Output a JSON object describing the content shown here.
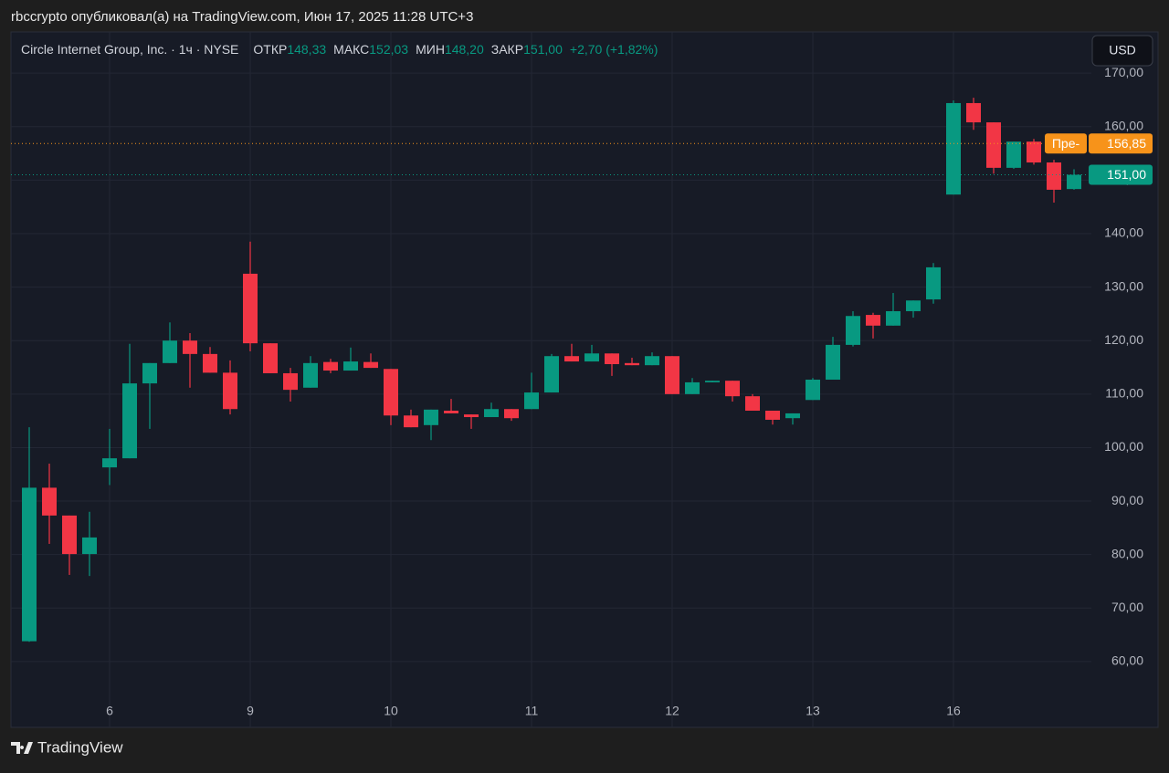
{
  "caption": "rbccrypto опубликовал(а) на TradingView.com, Июн 17, 2025 11:28 UTC+3",
  "footer": {
    "brand": "TradingView"
  },
  "chart_data": {
    "type": "candlestick",
    "legend": {
      "symbol": "Circle Internet Group, Inc. · 1ч · NYSE",
      "fields": [
        {
          "label": "ОТКР",
          "value": "148,33"
        },
        {
          "label": "МАКС",
          "value": "152,03"
        },
        {
          "label": "МИН",
          "value": "148,20"
        },
        {
          "label": "ЗАКР",
          "value": "151,00"
        }
      ],
      "change": "+2,70 (+1,82%)"
    },
    "currency": "USD",
    "categories": [
      null,
      null,
      null,
      null,
      "6",
      null,
      null,
      null,
      null,
      null,
      null,
      "9",
      null,
      null,
      null,
      null,
      null,
      null,
      "10",
      null,
      null,
      null,
      null,
      null,
      null,
      "11",
      null,
      null,
      null,
      null,
      null,
      null,
      "12",
      null,
      null,
      null,
      null,
      null,
      null,
      "13",
      null,
      null,
      null,
      null,
      null,
      null,
      "16",
      null,
      null,
      null,
      null,
      null,
      null
    ],
    "open": [
      63.8,
      92.5,
      87.3,
      80.1,
      96.3,
      98,
      112,
      115.8,
      120,
      117.5,
      114,
      132.5,
      119.5,
      113.9,
      111.2,
      116,
      114.4,
      116,
      114.7,
      106,
      104.2,
      106.9,
      106.2,
      105.7,
      107.2,
      107.2,
      110.3,
      117.1,
      116.1,
      117.6,
      115.8,
      115.4,
      117.1,
      110,
      112.2,
      112.5,
      109.6,
      106.9,
      105.5,
      108.9,
      112.7,
      119.2,
      124.8,
      122.8,
      125.5,
      127.7,
      147.3,
      164.4,
      160.8,
      152.3,
      157.2,
      153.3,
      148.33
    ],
    "high": [
      103.8,
      97,
      87.3,
      88,
      103.5,
      119.4,
      115.8,
      123.4,
      121.4,
      118.8,
      116.3,
      138.5,
      119.5,
      114.9,
      117.1,
      116.6,
      118.7,
      117.6,
      114.7,
      107.1,
      107.1,
      109.1,
      106.2,
      108.4,
      107.2,
      114,
      117.5,
      119.4,
      119.2,
      117.6,
      116.8,
      117.8,
      117.1,
      113,
      112.5,
      112.5,
      110,
      106.9,
      106.4,
      113,
      120.7,
      125.5,
      125.2,
      128.9,
      127.5,
      134.5,
      164.9,
      165.4,
      160.8,
      157.2,
      157.7,
      153.8,
      152.03
    ],
    "low": [
      63.7,
      82,
      76.2,
      76,
      93,
      98,
      103.5,
      115.8,
      111.2,
      114,
      106.2,
      118,
      113.9,
      108.6,
      111.2,
      113.9,
      114.4,
      114.9,
      104.2,
      103.8,
      101.4,
      106.4,
      103.5,
      105.7,
      105,
      107.2,
      110.3,
      116.1,
      116.1,
      113.4,
      115.4,
      115.4,
      110,
      110,
      112.2,
      108.6,
      106.9,
      104.3,
      104.3,
      108.9,
      112.7,
      118.9,
      120.4,
      122.8,
      124.3,
      126.9,
      147.3,
      159.4,
      151.2,
      152.1,
      152.9,
      145.8,
      148.2
    ],
    "close": [
      92.5,
      87.3,
      80.1,
      83.2,
      98,
      112,
      115.8,
      120,
      117.5,
      114,
      107.2,
      119.5,
      113.9,
      110.8,
      115.8,
      114.4,
      116.1,
      114.9,
      106,
      103.8,
      107.1,
      106.4,
      105.7,
      107.2,
      105.5,
      110.3,
      117.1,
      116.1,
      117.6,
      115.6,
      115.4,
      117.1,
      110,
      112.2,
      112.5,
      109.6,
      106.9,
      105.2,
      106.4,
      112.7,
      119.2,
      124.6,
      122.8,
      125.5,
      127.5,
      133.7,
      164.4,
      160.8,
      152.3,
      157.2,
      153.3,
      148.2,
      151
    ],
    "up_color": "#089981",
    "down_color": "#f23645",
    "ylim": [
      47.7,
      177.7
    ],
    "yticks": [
      {
        "value": 60,
        "label": "60,00"
      },
      {
        "value": 70,
        "label": "70,00"
      },
      {
        "value": 80,
        "label": "80,00"
      },
      {
        "value": 90,
        "label": "90,00"
      },
      {
        "value": 100,
        "label": "100,00"
      },
      {
        "value": 110,
        "label": "110,00"
      },
      {
        "value": 120,
        "label": "120,00"
      },
      {
        "value": 130,
        "label": "130,00"
      },
      {
        "value": 140,
        "label": "140,00"
      },
      {
        "value": 150,
        "label": "150,00"
      },
      {
        "value": 160,
        "label": "160,00"
      },
      {
        "value": 170,
        "label": "170,00"
      }
    ],
    "grid": true,
    "price_lines": [
      {
        "tag": "Пре-",
        "value": 156.85,
        "value_label": "156,85",
        "color": "#f7931a"
      },
      {
        "value": 151,
        "value_label": "151,00",
        "color": "#089981"
      }
    ]
  }
}
